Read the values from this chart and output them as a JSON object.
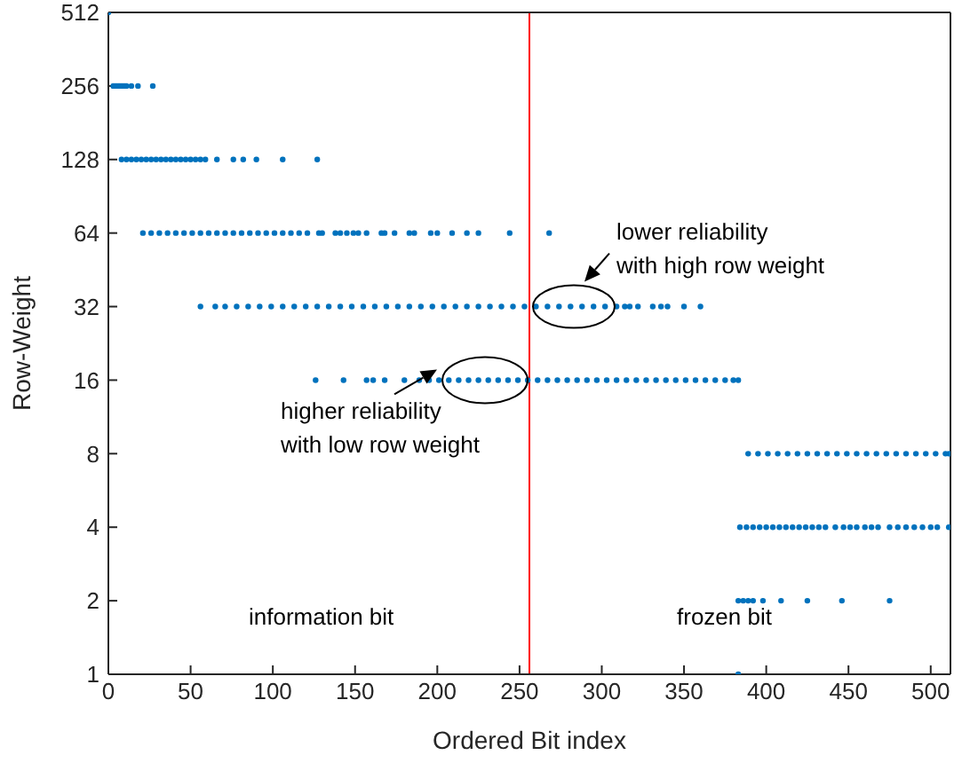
{
  "chart_data": {
    "type": "scatter",
    "xlabel": "Ordered Bit index",
    "ylabel": "Row-Weight",
    "xlim": [
      0,
      512
    ],
    "xticks": [
      0,
      50,
      100,
      150,
      200,
      250,
      300,
      350,
      400,
      450,
      500
    ],
    "ylim": [
      1,
      512
    ],
    "yticks": [
      1,
      2,
      4,
      8,
      16,
      32,
      64,
      128,
      256,
      512
    ],
    "log": "y",
    "marker": "circle",
    "series": [
      {
        "color": "#0072bd",
        "x": [
          0,
          3,
          4,
          5,
          6,
          7,
          8,
          9,
          10,
          11,
          14,
          18,
          27,
          8,
          11,
          14,
          17,
          20,
          23,
          26,
          29,
          32,
          35,
          38,
          41,
          44,
          47,
          50,
          53,
          56,
          59,
          66,
          76,
          82,
          90,
          106,
          127,
          21,
          26,
          31,
          36,
          41,
          46,
          51,
          56,
          61,
          66,
          71,
          76,
          81,
          86,
          91,
          96,
          101,
          106,
          111,
          116,
          121,
          128,
          130,
          138,
          141,
          145,
          149,
          152,
          157,
          166,
          168,
          174,
          183,
          186,
          196,
          200,
          209,
          218,
          225,
          244,
          268,
          56,
          65,
          71,
          78,
          85,
          92,
          99,
          106,
          113,
          120,
          127,
          134,
          141,
          148,
          155,
          162,
          169,
          176,
          183,
          190,
          197,
          204,
          211,
          218,
          225,
          232,
          239,
          246,
          253,
          260,
          267,
          274,
          281,
          288,
          295,
          302,
          309,
          314,
          317,
          322,
          331,
          336,
          340,
          350,
          360,
          126,
          143,
          157,
          161,
          168,
          180,
          189,
          195,
          201,
          207,
          213,
          219,
          225,
          231,
          237,
          243,
          249,
          255,
          261,
          267,
          273,
          279,
          285,
          291,
          297,
          303,
          309,
          315,
          321,
          327,
          333,
          339,
          345,
          351,
          357,
          363,
          369,
          375,
          380,
          383,
          389,
          395,
          401,
          407,
          413,
          419,
          425,
          431,
          437,
          443,
          449,
          455,
          461,
          467,
          473,
          479,
          485,
          491,
          497,
          503,
          509,
          511,
          384,
          388,
          392,
          396,
          400,
          404,
          408,
          412,
          416,
          420,
          424,
          428,
          432,
          436,
          442,
          447,
          451,
          455,
          460,
          464,
          468,
          475,
          480,
          485,
          490,
          495,
          500,
          504,
          511,
          383,
          386,
          389,
          392,
          398,
          409,
          425,
          446,
          475,
          383
        ],
        "values": [
          512,
          256,
          256,
          256,
          256,
          256,
          256,
          256,
          256,
          256,
          256,
          256,
          256,
          128,
          128,
          128,
          128,
          128,
          128,
          128,
          128,
          128,
          128,
          128,
          128,
          128,
          128,
          128,
          128,
          128,
          128,
          128,
          128,
          128,
          128,
          128,
          128,
          64,
          64,
          64,
          64,
          64,
          64,
          64,
          64,
          64,
          64,
          64,
          64,
          64,
          64,
          64,
          64,
          64,
          64,
          64,
          64,
          64,
          64,
          64,
          64,
          64,
          64,
          64,
          64,
          64,
          64,
          64,
          64,
          64,
          64,
          64,
          64,
          64,
          64,
          64,
          64,
          64,
          32,
          32,
          32,
          32,
          32,
          32,
          32,
          32,
          32,
          32,
          32,
          32,
          32,
          32,
          32,
          32,
          32,
          32,
          32,
          32,
          32,
          32,
          32,
          32,
          32,
          32,
          32,
          32,
          32,
          32,
          32,
          32,
          32,
          32,
          32,
          32,
          32,
          32,
          32,
          32,
          32,
          32,
          32,
          32,
          32,
          16,
          16,
          16,
          16,
          16,
          16,
          16,
          16,
          16,
          16,
          16,
          16,
          16,
          16,
          16,
          16,
          16,
          16,
          16,
          16,
          16,
          16,
          16,
          16,
          16,
          16,
          16,
          16,
          16,
          16,
          16,
          16,
          16,
          16,
          16,
          16,
          16,
          16,
          16,
          16,
          8,
          8,
          8,
          8,
          8,
          8,
          8,
          8,
          8,
          8,
          8,
          8,
          8,
          8,
          8,
          8,
          8,
          8,
          8,
          8,
          8,
          8,
          4,
          4,
          4,
          4,
          4,
          4,
          4,
          4,
          4,
          4,
          4,
          4,
          4,
          4,
          4,
          4,
          4,
          4,
          4,
          4,
          4,
          4,
          4,
          4,
          4,
          4,
          4,
          4,
          4,
          2,
          2,
          2,
          2,
          2,
          2,
          2,
          2,
          2,
          1
        ]
      }
    ],
    "ref_lines": [
      {
        "axis": "x",
        "value": 256,
        "color": "#ff0000"
      }
    ],
    "annotations": [
      {
        "text": "lower reliability\nwith high row weight",
        "x": 283,
        "y": 32
      },
      {
        "text": "higher reliability\nwith low row weight",
        "x": 229,
        "y": 16
      },
      "information bit",
      "frozen bit"
    ]
  }
}
